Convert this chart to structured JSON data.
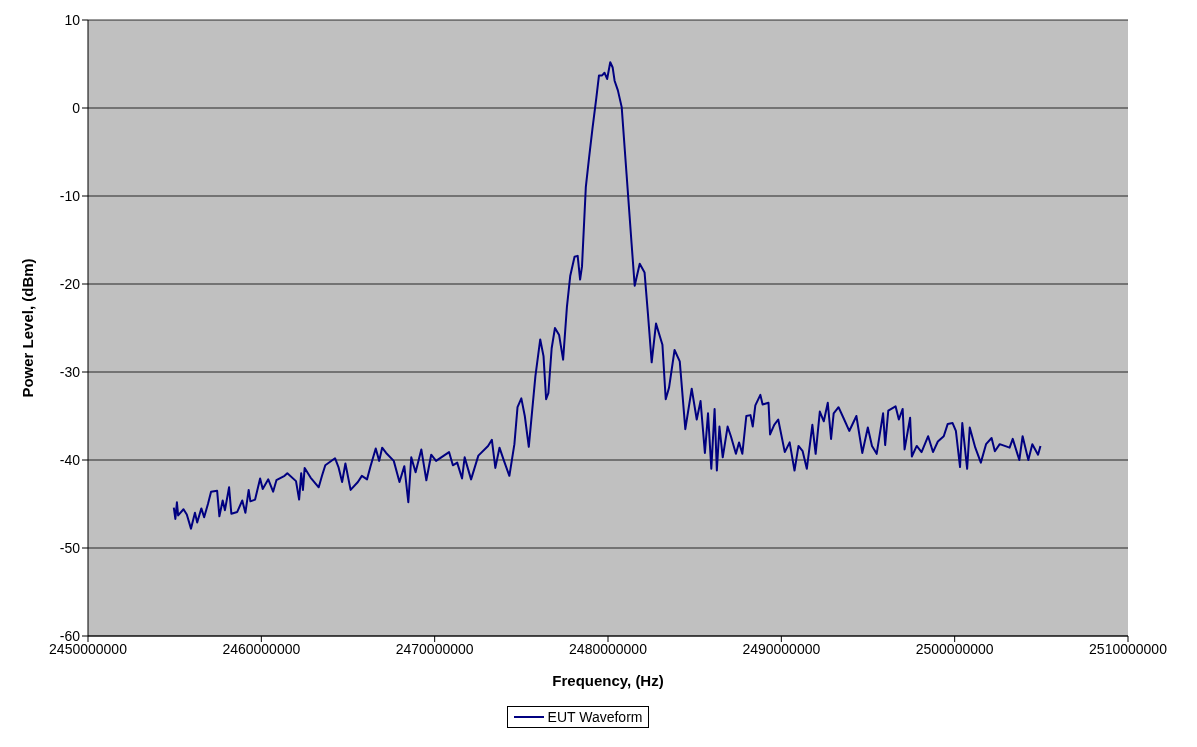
{
  "chart_data": {
    "type": "line",
    "xlabel": "Frequency, (Hz)",
    "ylabel": "Power Level, (dBm)",
    "xlim": [
      2450000000,
      2510000000
    ],
    "xticks": [
      2450000000,
      2460000000,
      2470000000,
      2480000000,
      2490000000,
      2500000000,
      2510000000
    ],
    "ylim": [
      -60,
      10
    ],
    "yticks": [
      -60,
      -50,
      -40,
      -30,
      -20,
      -10,
      0,
      10
    ],
    "grid": "y",
    "legend": "bottom",
    "marker": "none",
    "line_style": "solid",
    "x": [
      2454950000,
      2455040000,
      2455130000,
      2455200000,
      2455510000,
      2455700000,
      2455940000,
      2456170000,
      2456300000,
      2456540000,
      2456700000,
      2456920000,
      2457100000,
      2457450000,
      2457580000,
      2457770000,
      2457900000,
      2458140000,
      2458270000,
      2458610000,
      2458900000,
      2459080000,
      2459270000,
      2459370000,
      2459640000,
      2459930000,
      2460080000,
      2460400000,
      2460680000,
      2460870000,
      2461340000,
      2461500000,
      2462000000,
      2462180000,
      2462300000,
      2462400000,
      2462500000,
      2462840000,
      2463310000,
      2463500000,
      2463690000,
      2464250000,
      2464450000,
      2464660000,
      2464850000,
      2465150000,
      2465570000,
      2465800000,
      2466100000,
      2466300000,
      2466600000,
      2466800000,
      2466970000,
      2467200000,
      2467640000,
      2467970000,
      2468250000,
      2468480000,
      2468650000,
      2468900000,
      2469230000,
      2469520000,
      2469800000,
      2470080000,
      2470830000,
      2471050000,
      2471300000,
      2471580000,
      2471730000,
      2472100000,
      2472520000,
      2473080000,
      2473300000,
      2473500000,
      2473740000,
      2474000000,
      2474310000,
      2474600000,
      2474780000,
      2475000000,
      2475200000,
      2475430000,
      2475810000,
      2476090000,
      2476280000,
      2476430000,
      2476560000,
      2476750000,
      2476940000,
      2477180000,
      2477410000,
      2477630000,
      2477820000,
      2478070000,
      2478250000,
      2478390000,
      2478500000,
      2478720000,
      2478910000,
      2479100000,
      2479330000,
      2479480000,
      2479660000,
      2479800000,
      2479950000,
      2480130000,
      2480270000,
      2480380000,
      2480570000,
      2480790000,
      2481070000,
      2481360000,
      2481540000,
      2481830000,
      2482110000,
      2482300000,
      2482520000,
      2482770000,
      2483140000,
      2483330000,
      2483520000,
      2483840000,
      2484140000,
      2484460000,
      2484830000,
      2485120000,
      2485340000,
      2485590000,
      2485770000,
      2485960000,
      2486150000,
      2486280000,
      2486430000,
      2486620000,
      2486900000,
      2487090000,
      2487380000,
      2487560000,
      2487750000,
      2487980000,
      2488220000,
      2488350000,
      2488500000,
      2488790000,
      2488920000,
      2489260000,
      2489350000,
      2489590000,
      2489820000,
      2490200000,
      2490480000,
      2490760000,
      2490990000,
      2491230000,
      2491470000,
      2491790000,
      2491980000,
      2492220000,
      2492450000,
      2492680000,
      2492870000,
      2493020000,
      2493300000,
      2493580000,
      2493920000,
      2494330000,
      2494670000,
      2494990000,
      2495230000,
      2495500000,
      2495870000,
      2495990000,
      2496170000,
      2496590000,
      2496780000,
      2497000000,
      2497110000,
      2497430000,
      2497530000,
      2497810000,
      2498090000,
      2498470000,
      2498750000,
      2499030000,
      2499370000,
      2499600000,
      2499880000,
      2500070000,
      2500310000,
      2500440000,
      2500720000,
      2500870000,
      2501190000,
      2501510000,
      2501810000,
      2502130000,
      2502320000,
      2502600000,
      2503170000,
      2503350000,
      2503730000,
      2503920000,
      2504250000,
      2504480000,
      2504810000,
      2504950000
    ],
    "series": [
      {
        "name": "EUT Waveform",
        "color": "#000080",
        "values": [
          -45.4,
          -46.7,
          -44.8,
          -46.3,
          -45.6,
          -46.2,
          -47.8,
          -46,
          -47.1,
          -45.5,
          -46.5,
          -45,
          -43.6,
          -43.5,
          -46.4,
          -44.6,
          -45.7,
          -43.1,
          -46.1,
          -45.9,
          -44.6,
          -46,
          -43.4,
          -44.7,
          -44.5,
          -42.1,
          -43.3,
          -42.2,
          -43.6,
          -42.3,
          -41.8,
          -41.5,
          -42.4,
          -44.5,
          -41.5,
          -43.4,
          -40.9,
          -42,
          -43.1,
          -41.8,
          -40.6,
          -39.8,
          -40.8,
          -42.5,
          -40.4,
          -43.4,
          -42.5,
          -41.8,
          -42.2,
          -40.7,
          -38.7,
          -40.1,
          -38.6,
          -39.2,
          -40.1,
          -42.5,
          -40.7,
          -44.8,
          -39.7,
          -41.4,
          -38.8,
          -42.3,
          -39.4,
          -40.1,
          -39.1,
          -40.6,
          -40.3,
          -42.1,
          -39.7,
          -42.2,
          -39.5,
          -38.4,
          -37.7,
          -40.9,
          -38.6,
          -40.1,
          -41.8,
          -38.2,
          -34,
          -33,
          -35,
          -38.5,
          -30.5,
          -26.3,
          -28.2,
          -33.1,
          -32.4,
          -27.3,
          -25,
          -25.8,
          -28.6,
          -22.6,
          -19.1,
          -16.9,
          -16.8,
          -19.5,
          -18,
          -9,
          -5.6,
          -2.4,
          1.2,
          3.7,
          3.7,
          4,
          3.3,
          5.2,
          4.6,
          3.1,
          2,
          0.1,
          -7.5,
          -15.4,
          -20.2,
          -17.7,
          -18.7,
          -23.3,
          -28.9,
          -24.5,
          -26.9,
          -33.1,
          -31.8,
          -27.5,
          -28.8,
          -36.5,
          -31.9,
          -35.4,
          -33.3,
          -39.2,
          -34.7,
          -41,
          -34.2,
          -41.2,
          -36.2,
          -39.7,
          -36.2,
          -37.3,
          -39.3,
          -38,
          -39.3,
          -35,
          -34.9,
          -36.2,
          -33.8,
          -32.6,
          -33.7,
          -33.5,
          -37.1,
          -36,
          -35.4,
          -39.1,
          -38,
          -41.2,
          -38.4,
          -39,
          -41,
          -36,
          -39.3,
          -34.5,
          -35.6,
          -33.5,
          -37.6,
          -34.7,
          -34,
          -35.2,
          -36.7,
          -35,
          -39.2,
          -36.3,
          -38.4,
          -39.3,
          -34.7,
          -38.3,
          -34.4,
          -33.9,
          -35.4,
          -34.2,
          -38.8,
          -35.2,
          -39.6,
          -38.4,
          -39.1,
          -37.3,
          -39.1,
          -37.9,
          -37.3,
          -35.9,
          -35.8,
          -36.7,
          -40.8,
          -35.8,
          -41,
          -36.3,
          -38.6,
          -40.3,
          -38.2,
          -37.5,
          -39,
          -38.2,
          -38.6,
          -37.6,
          -40,
          -37.3,
          -40,
          -38.2,
          -39.4,
          -38.4
        ]
      }
    ]
  }
}
